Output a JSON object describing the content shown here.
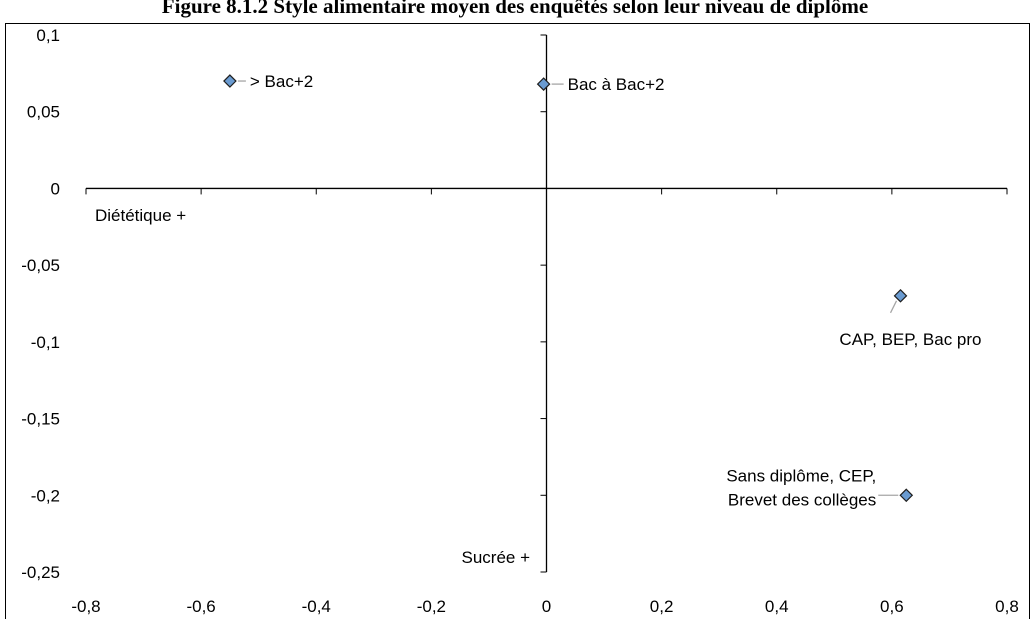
{
  "chart_data": {
    "type": "scatter",
    "title": "Figure 8.1.2 Style alimentaire moyen des enquêtés selon leur niveau de diplôme",
    "xlim": [
      -0.8,
      0.8
    ],
    "ylim": [
      -0.25,
      0.1
    ],
    "x_ticks": [
      "-0,8",
      "-0,6",
      "-0,4",
      "-0,2",
      "0",
      "0,2",
      "0,4",
      "0,6",
      "0,8"
    ],
    "y_ticks": [
      "0,1",
      "0,05",
      "0",
      "-0,05",
      "-0,1",
      "-0,15",
      "-0,2",
      "-0,25"
    ],
    "axis_annotations": {
      "negative_x": "Diététique +",
      "negative_y": "Sucrée +"
    },
    "grid": false,
    "legend": "none",
    "marker": "diamond",
    "marker_color": "#6a9bd1",
    "points": [
      {
        "label": "> Bac+2",
        "x": -0.55,
        "y": 0.07
      },
      {
        "label": "Bac à Bac+2",
        "x": -0.005,
        "y": 0.068
      },
      {
        "label": "CAP, BEP, Bac pro",
        "x": 0.615,
        "y": -0.07
      },
      {
        "label": "Sans diplôme, CEP,\nBrevet des collèges",
        "x": 0.625,
        "y": -0.2
      }
    ]
  }
}
